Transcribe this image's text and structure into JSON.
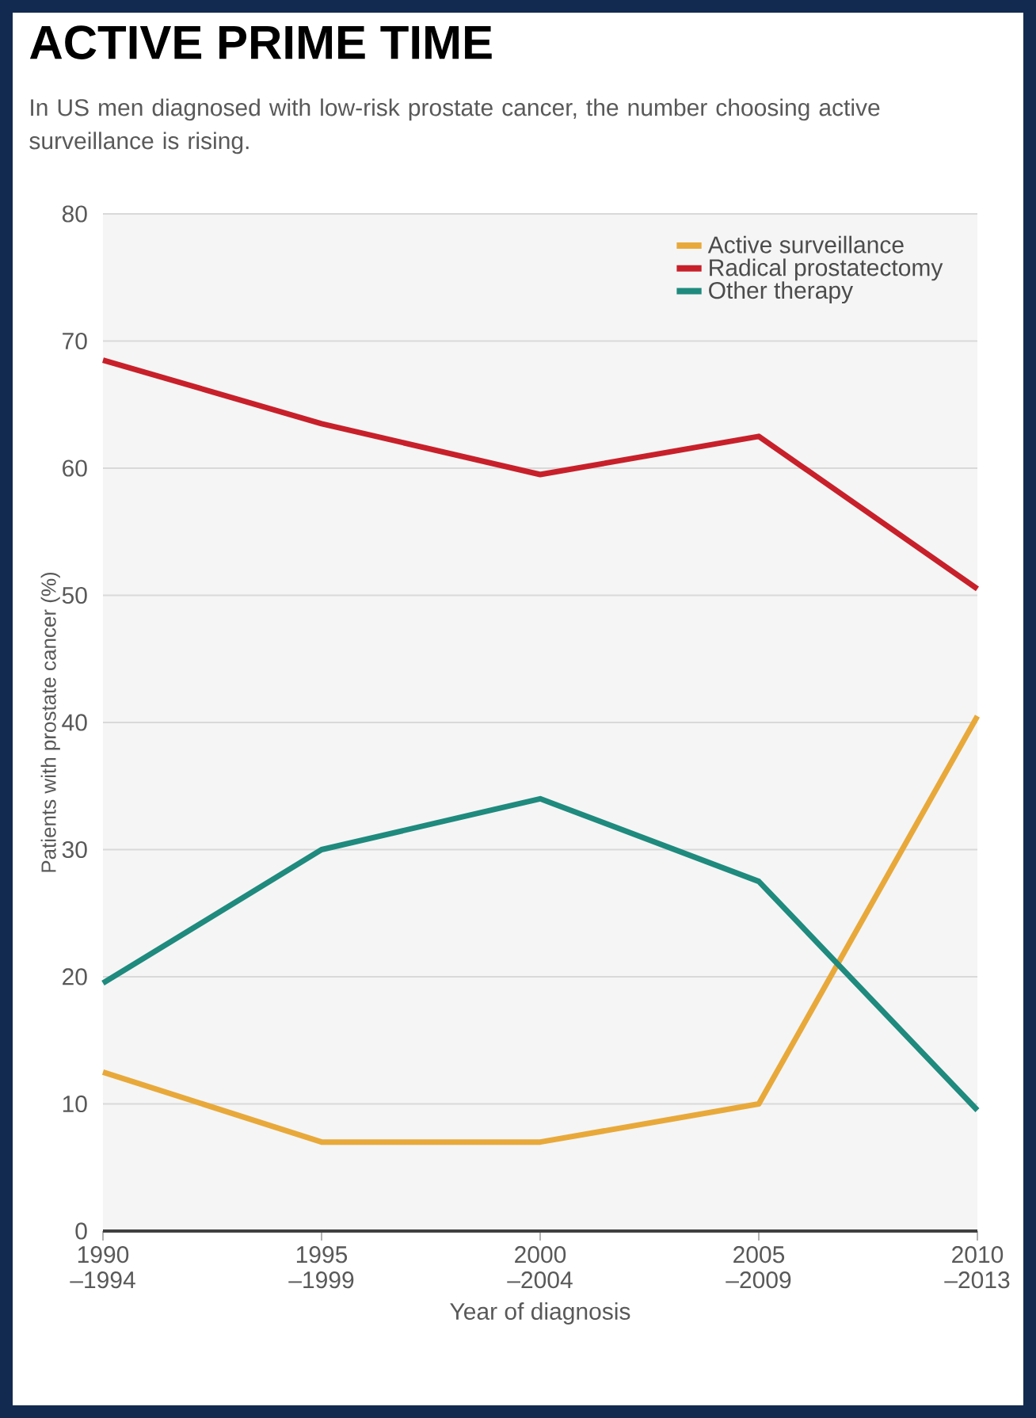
{
  "chart_data": {
    "type": "line",
    "title": "ACTIVE PRIME TIME",
    "subtitle": "In US men diagnosed with low-risk prostate cancer, the number choosing active surveillance is rising.",
    "xlabel": "Year of diagnosis",
    "ylabel": "Patients with prostate cancer (%)",
    "categories": [
      "1990 –1994",
      "1995 –1999",
      "2000 –2004",
      "2005 –2009",
      "2010 –2013"
    ],
    "series": [
      {
        "name": "Active surveillance",
        "color": "#e8a93a",
        "values": [
          12.5,
          7,
          7,
          10,
          40.5
        ]
      },
      {
        "name": "Radical prostatectomy",
        "color": "#c8202a",
        "values": [
          68.5,
          63.5,
          59.5,
          62.5,
          50.5
        ]
      },
      {
        "name": "Other therapy",
        "color": "#1f8a7e",
        "values": [
          19.5,
          30,
          34,
          27.5,
          9.5
        ]
      }
    ],
    "ylim": [
      0,
      80
    ],
    "yticks": [
      0,
      10,
      20,
      30,
      40,
      50,
      60,
      70,
      80
    ],
    "grid": "y",
    "legend": "top right"
  }
}
